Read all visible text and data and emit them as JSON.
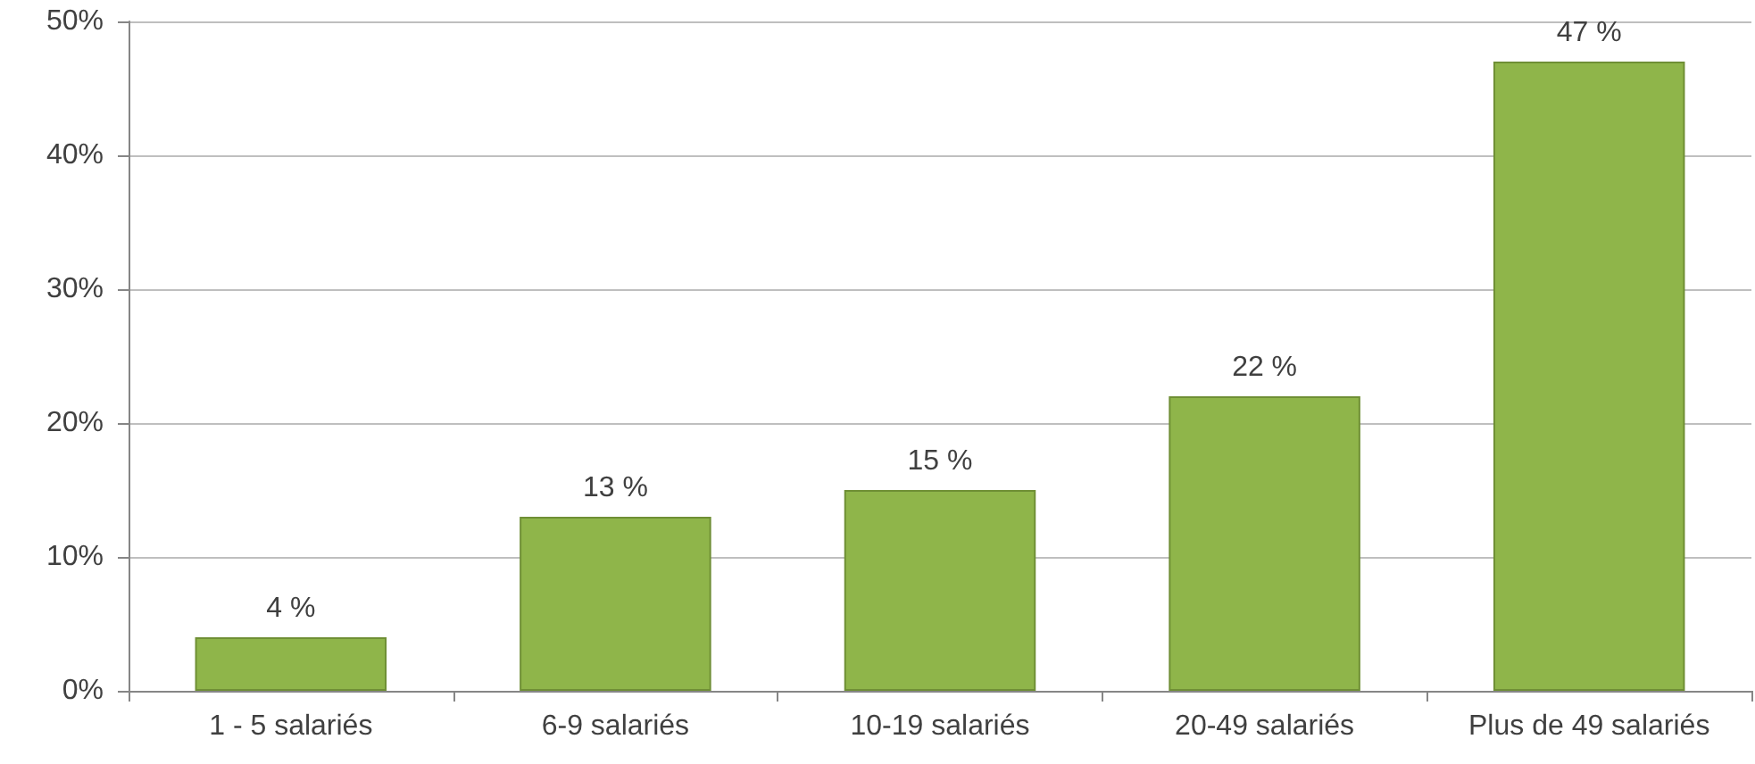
{
  "chart_data": {
    "type": "bar",
    "categories": [
      "1 - 5 salariés",
      "6-9 salariés",
      "10-19 salariés",
      "20-49 salariés",
      "Plus de 49 salariés"
    ],
    "values": [
      4,
      13,
      15,
      22,
      47
    ],
    "value_labels": [
      "4 %",
      "13 %",
      "15 %",
      "22 %",
      "47 %"
    ],
    "color": "#8fb54a",
    "ylim": [
      0,
      50
    ],
    "yticks": [
      {
        "value": 0,
        "label": "0%"
      },
      {
        "value": 10,
        "label": "10%"
      },
      {
        "value": 20,
        "label": "20%"
      },
      {
        "value": 30,
        "label": "30%"
      },
      {
        "value": 40,
        "label": "40%"
      },
      {
        "value": 50,
        "label": "50%"
      }
    ],
    "grid": "y"
  }
}
